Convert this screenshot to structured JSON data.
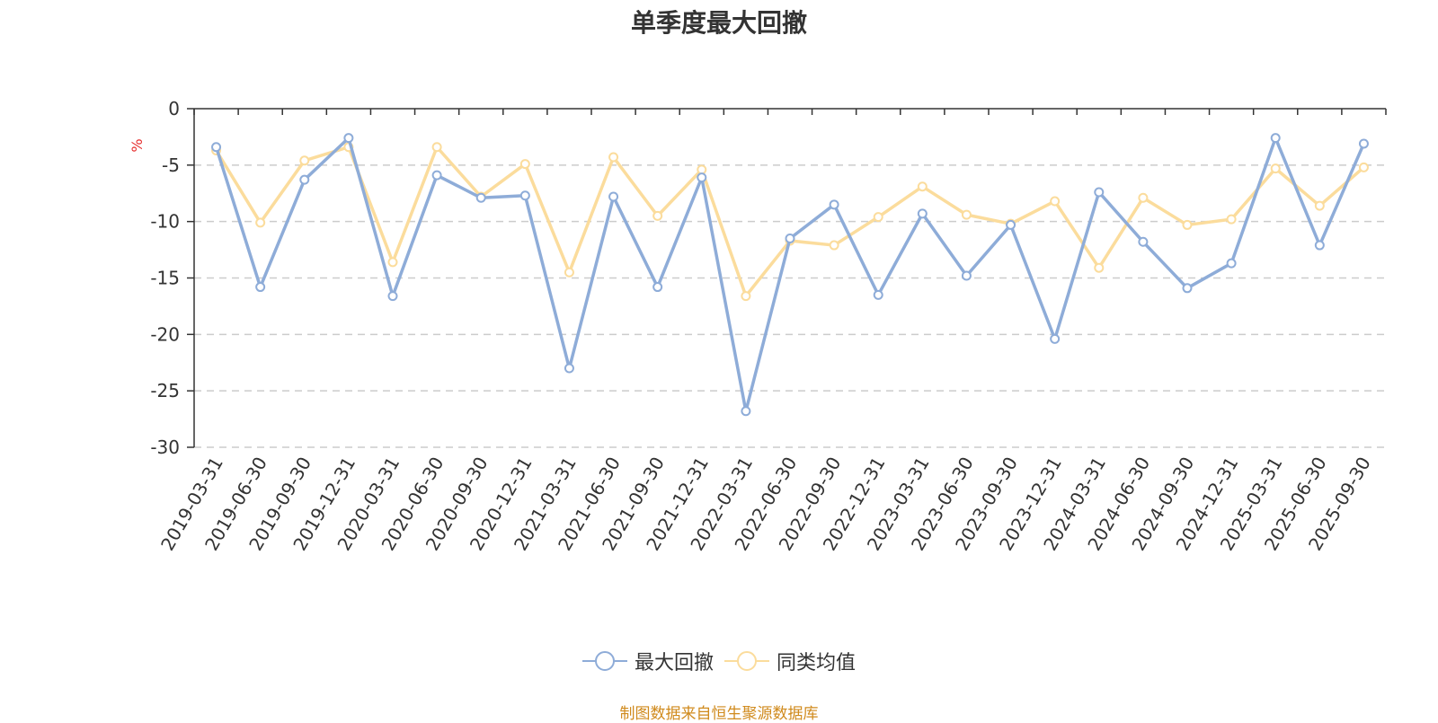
{
  "chart_data": {
    "type": "line",
    "title": "单季度最大回撤",
    "ylabel": "%",
    "ylim": [
      -30,
      0
    ],
    "yticks": [
      0,
      -5,
      -10,
      -15,
      -20,
      -25,
      -30
    ],
    "grid": true,
    "legend_position": "bottom",
    "categories": [
      "2019-03-31",
      "2019-06-30",
      "2019-09-30",
      "2019-12-31",
      "2020-03-31",
      "2020-06-30",
      "2020-09-30",
      "2020-12-31",
      "2021-03-31",
      "2021-06-30",
      "2021-09-30",
      "2021-12-31",
      "2022-03-31",
      "2022-06-30",
      "2022-09-30",
      "2022-12-31",
      "2023-03-31",
      "2023-06-30",
      "2023-09-30",
      "2023-12-31",
      "2024-03-31",
      "2024-06-30",
      "2024-09-30",
      "2024-12-31",
      "2025-03-31",
      "2025-06-30",
      "2025-09-30"
    ],
    "series": [
      {
        "name": "最大回撤",
        "color": "#8eacd8",
        "values": [
          -3.4,
          -15.8,
          -6.3,
          -2.6,
          -16.6,
          -5.9,
          -7.9,
          -7.7,
          -23.0,
          -7.8,
          -15.8,
          -6.1,
          -26.8,
          -11.5,
          -8.5,
          -16.5,
          -9.3,
          -14.8,
          -10.3,
          -20.4,
          -7.4,
          -11.8,
          -15.9,
          -13.7,
          -2.6,
          -12.1,
          -3.1
        ]
      },
      {
        "name": "同类均值",
        "color": "#fbdc9c",
        "values": [
          -3.7,
          -10.1,
          -4.6,
          -3.4,
          -13.6,
          -3.4,
          -7.8,
          -4.9,
          -14.5,
          -4.3,
          -9.5,
          -5.4,
          -16.6,
          -11.7,
          -12.1,
          -9.6,
          -6.9,
          -9.4,
          -10.2,
          -8.2,
          -14.1,
          -7.9,
          -10.3,
          -9.8,
          -5.3,
          -8.6,
          -5.2
        ]
      }
    ]
  },
  "legend": {
    "items": [
      "最大回撤",
      "同类均值"
    ]
  },
  "source_text": "制图数据来自恒生聚源数据库",
  "colors": {
    "axis": "#333333",
    "grid": "#cccccc",
    "unit": "#e62e2e",
    "source": "#d08a1c"
  }
}
